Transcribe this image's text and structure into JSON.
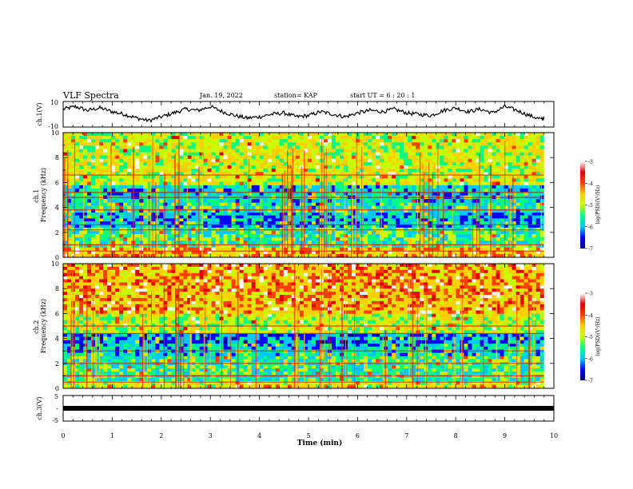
{
  "header": {
    "title": "VLF Spectra",
    "date": "Jan. 19, 2022",
    "station": "station= KAP",
    "start_ut": "start  UT =  6 : 20 : 1"
  },
  "colorbars": [
    {
      "ticks": [
        "-3",
        "-4",
        "-5",
        "-6",
        "-7"
      ],
      "label": "log(PSD)(V²/Hz)",
      "range": [
        -7,
        -3
      ],
      "colormap": [
        "#000080",
        "#0000ff",
        "#00c8ff",
        "#00ff80",
        "#c8ff00",
        "#ffd000",
        "#ff4000",
        "#e00000",
        "#ffffff"
      ]
    },
    {
      "ticks": [
        "-3",
        "-4",
        "-5",
        "-6",
        "-7"
      ],
      "label": "log(PSD)(V²/Hz)",
      "range": [
        -7,
        -3
      ],
      "colormap": [
        "#000080",
        "#0000ff",
        "#00c8ff",
        "#00ff80",
        "#c8ff00",
        "#ffd000",
        "#ff4000",
        "#e00000",
        "#ffffff"
      ]
    }
  ],
  "chart_data": [
    {
      "type": "line",
      "name": "ch1-voltage",
      "ylabel": "ch.1(V)",
      "ylim": [
        -10,
        10
      ],
      "yticks": [
        "10",
        "-10"
      ],
      "xlim": [
        0,
        10
      ],
      "x": [
        0,
        0.25,
        0.5,
        0.75,
        1,
        1.25,
        1.5,
        1.75,
        2,
        2.25,
        2.5,
        2.75,
        3,
        3.25,
        3.5,
        3.75,
        4,
        4.25,
        4.5,
        4.75,
        5,
        5.25,
        5.5,
        5.75,
        6,
        6.25,
        6.5,
        6.75,
        7,
        7.25,
        7.5,
        7.75,
        8,
        8.25,
        8.5,
        8.75,
        9,
        9.25,
        9.5,
        9.75,
        9.8
      ],
      "y": [
        4,
        6,
        3,
        5,
        2,
        0,
        -3,
        -5,
        -2,
        1,
        4,
        3,
        6,
        2,
        -1,
        -3,
        -2,
        0,
        1,
        -2,
        -1,
        2,
        0,
        -2,
        1,
        3,
        2,
        4,
        1,
        0,
        -1,
        3,
        5,
        2,
        4,
        1,
        6,
        3,
        -1,
        -4,
        -3
      ]
    },
    {
      "type": "heatmap",
      "name": "ch1-spectrogram",
      "ylabel": "ch.1\nFrequency  (kHz)",
      "ylim": [
        0,
        10
      ],
      "yticks": [
        "0",
        "2",
        "4",
        "6",
        "8",
        "10"
      ],
      "xlim": [
        0,
        9.8
      ],
      "value_range": [
        -7,
        -3
      ],
      "bands": [
        {
          "freq": [
            0,
            0.8
          ],
          "level": -3.8
        },
        {
          "freq": [
            0.8,
            2.4
          ],
          "level": -5.0
        },
        {
          "freq": [
            2.4,
            3.6
          ],
          "level": -5.6
        },
        {
          "freq": [
            3.6,
            4.4
          ],
          "level": -5.2
        },
        {
          "freq": [
            4.4,
            5.8
          ],
          "level": -5.4
        },
        {
          "freq": [
            5.8,
            10
          ],
          "level": -4.3
        }
      ],
      "lines_khz": [
        0.5,
        1.0,
        2.2,
        2.6,
        3.8,
        4.8,
        5.2,
        6.6
      ]
    },
    {
      "type": "heatmap",
      "name": "ch2-spectrogram",
      "ylabel": "ch.2\nFrequency  (kHz)",
      "ylim": [
        0,
        10
      ],
      "yticks": [
        "0",
        "2",
        "4",
        "6",
        "8",
        "10"
      ],
      "xlim": [
        0,
        9.8
      ],
      "value_range": [
        -7,
        -3
      ],
      "bands": [
        {
          "freq": [
            0,
            0.6
          ],
          "level": -4.2
        },
        {
          "freq": [
            0.6,
            2.6
          ],
          "level": -5.1
        },
        {
          "freq": [
            2.6,
            3.6
          ],
          "level": -5.5
        },
        {
          "freq": [
            3.6,
            4.4
          ],
          "level": -5.8
        },
        {
          "freq": [
            4.4,
            6.0
          ],
          "level": -4.4
        },
        {
          "freq": [
            6.0,
            10
          ],
          "level": -3.7
        }
      ],
      "lines_khz": [
        0.5,
        1.0,
        2.0,
        3.0,
        4.4,
        5.0
      ]
    },
    {
      "type": "line",
      "name": "ch3-voltage",
      "ylabel": "ch.3(V)",
      "ylim": [
        -5,
        5
      ],
      "yticks": [
        "5",
        "-",
        "-5"
      ],
      "xlim": [
        0,
        10
      ],
      "x": [
        0,
        9.8
      ],
      "y": [
        0,
        0
      ]
    }
  ],
  "xaxis": {
    "label": "Time  (min)",
    "ticks": [
      "0",
      "1",
      "2",
      "3",
      "4",
      "5",
      "6",
      "7",
      "8",
      "9",
      "10"
    ],
    "range": [
      0,
      10
    ]
  }
}
